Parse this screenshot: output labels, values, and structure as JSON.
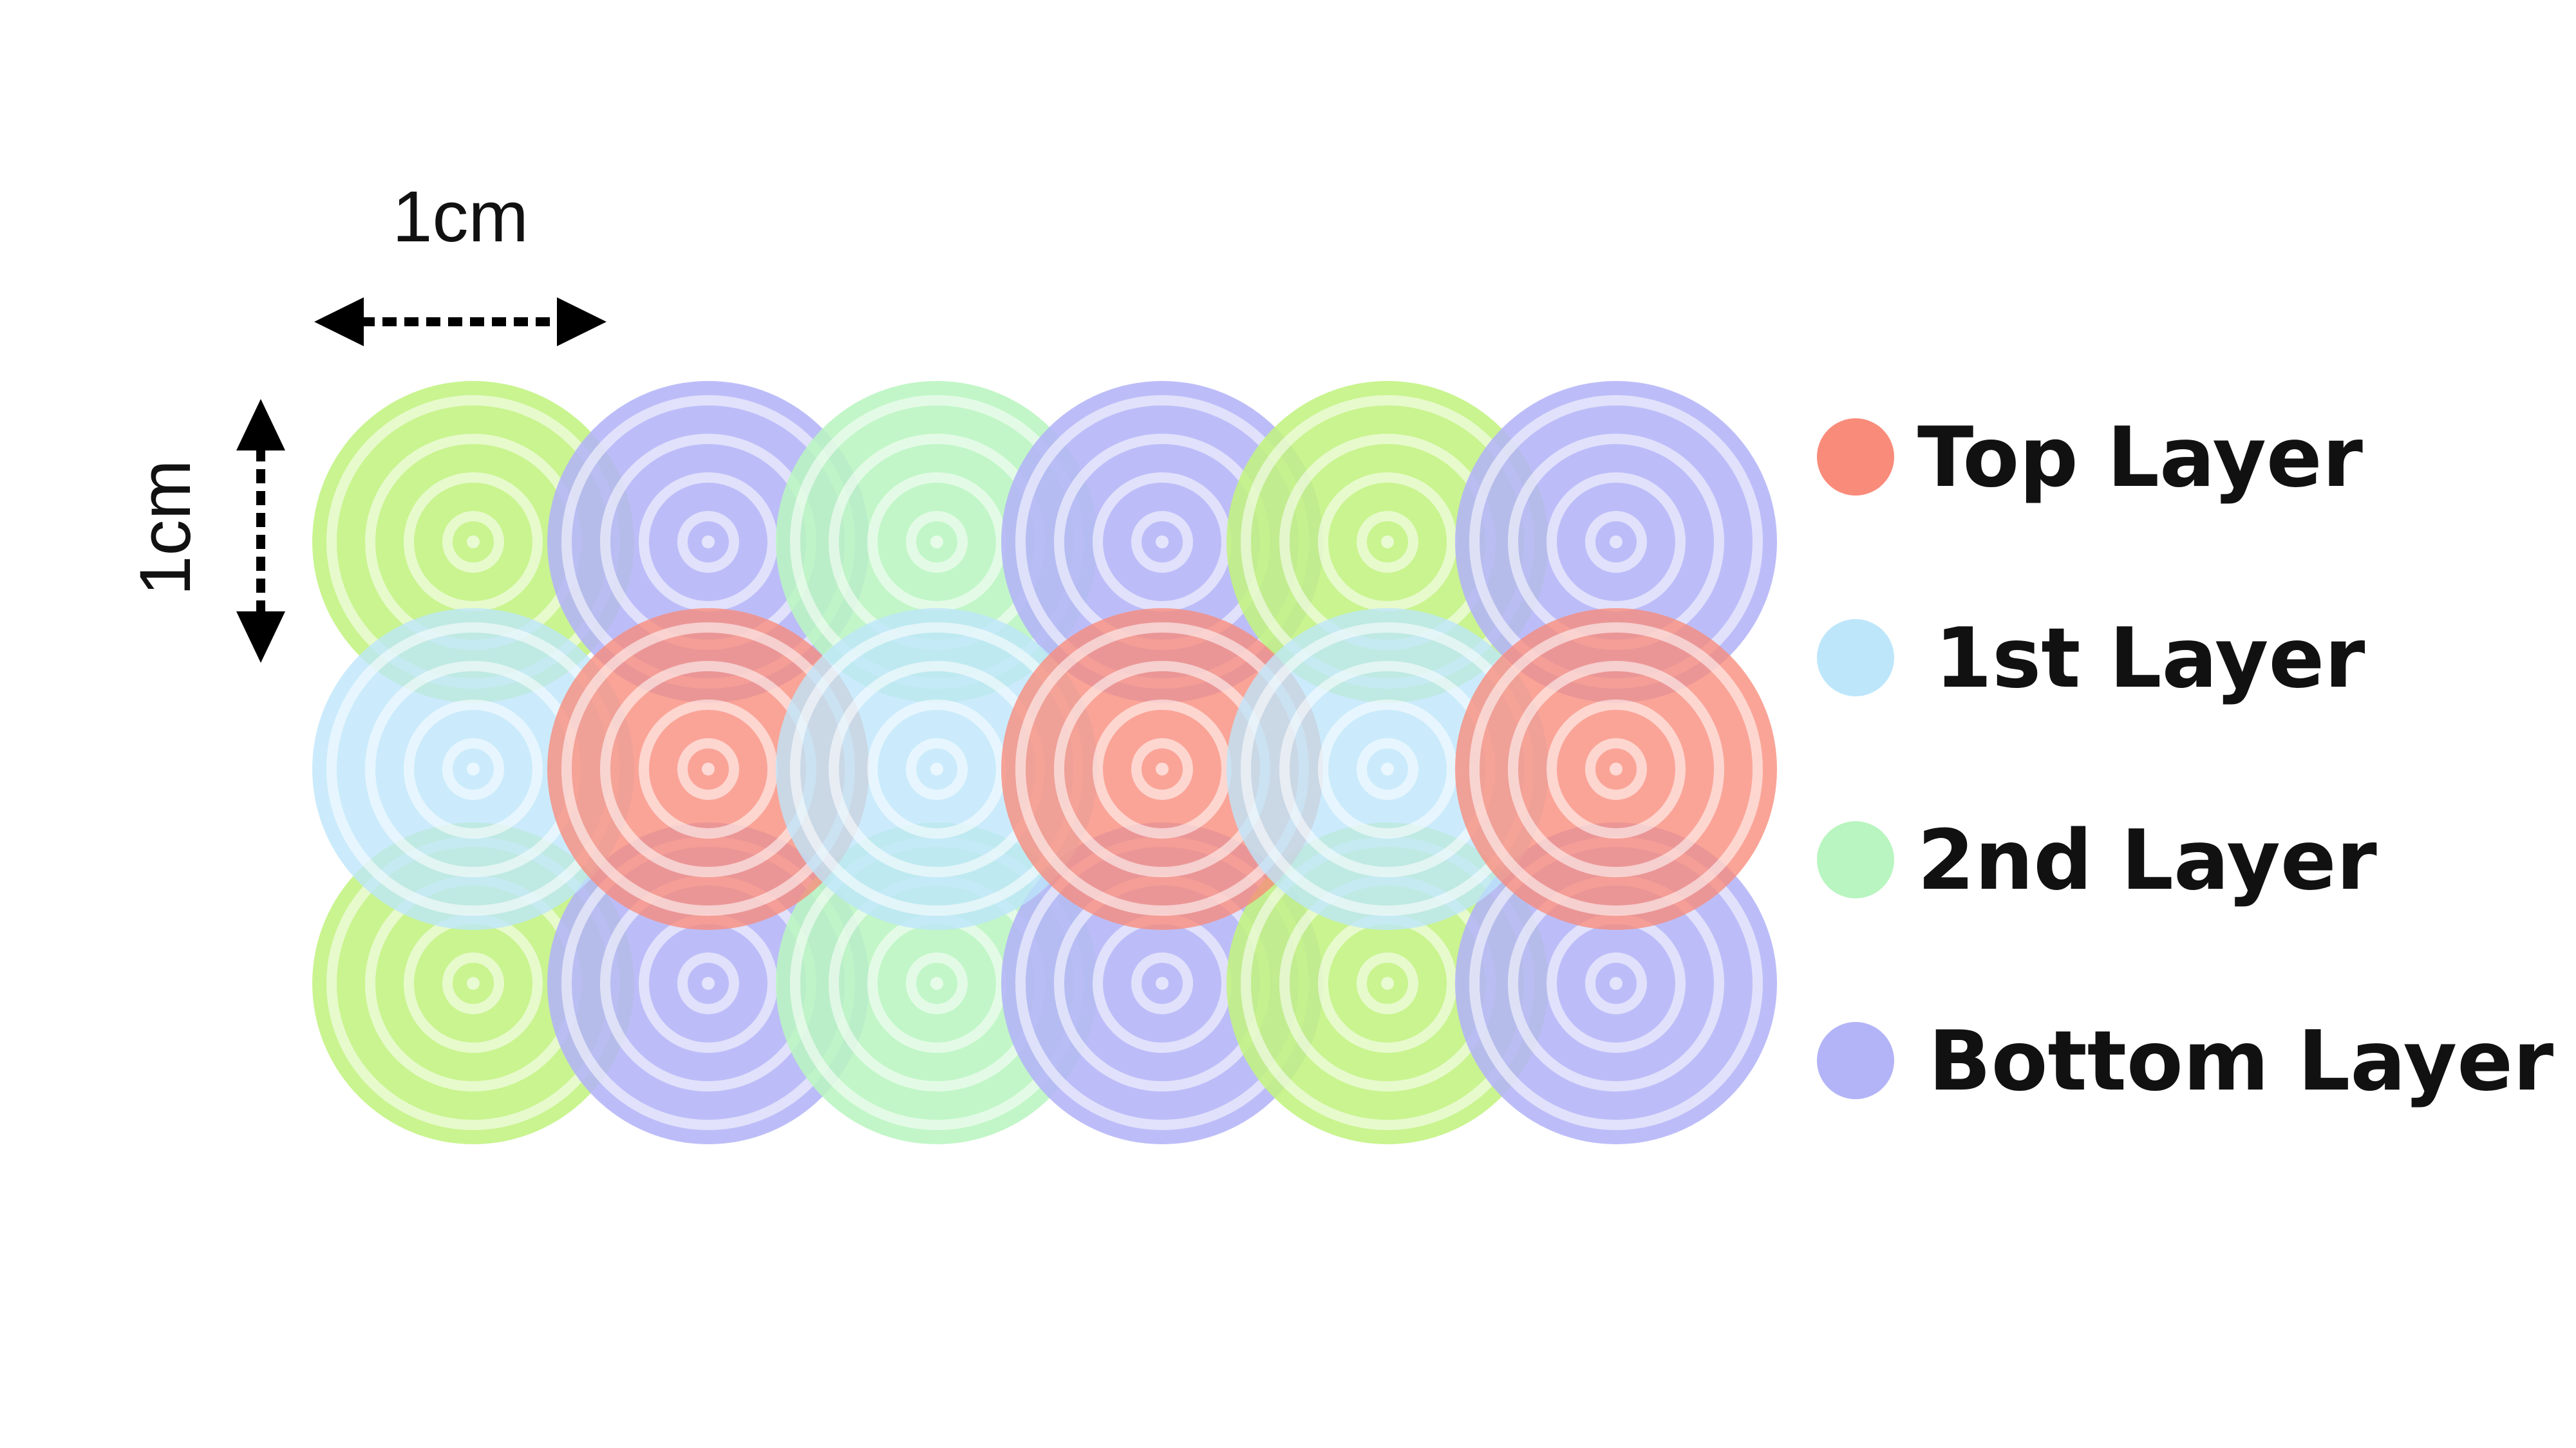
{
  "dimensions": {
    "horizontal_label": "1cm",
    "vertical_label": "1cm"
  },
  "layers": [
    {
      "id": "bottom",
      "label": "Bottom Layer",
      "color": "#b3b4f7"
    },
    {
      "id": "second",
      "label": "2nd Layer",
      "color": "#b9f5c0"
    },
    {
      "id": "first",
      "label": "1st Layer",
      "color": "#bde6fb"
    },
    {
      "id": "top",
      "label": "Top Layer",
      "color": "#f98b7a"
    }
  ],
  "extra_colors": {
    "lime": "#c2f37f"
  },
  "legend_order": [
    "top",
    "first",
    "second",
    "bottom"
  ],
  "grid": {
    "columns": 6,
    "rows": 3
  }
}
